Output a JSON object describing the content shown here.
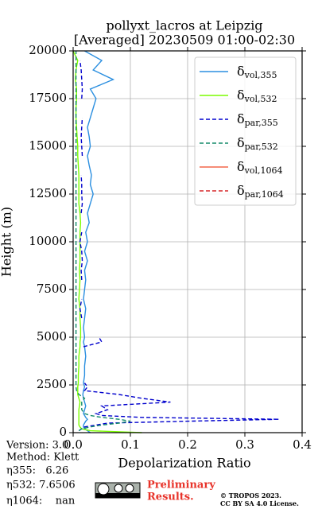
{
  "chart_data": {
    "type": "line",
    "title": [
      "pollyxt_lacros at Leipzig",
      "[Averaged] 20230509 01:00-02:30"
    ],
    "x_label": "Depolarization Ratio",
    "y_label": "Height (m)",
    "xlim": [
      0,
      0.4
    ],
    "xticks": [
      {
        "value": 0,
        "label": "0.0"
      },
      0.1,
      0.2,
      0.3,
      0.4
    ],
    "ylim": [
      0,
      20000
    ],
    "yticks": [
      0,
      2500,
      5000,
      7500,
      10000,
      12500,
      15000,
      17500,
      20000
    ],
    "grid": true,
    "legend": "upper right",
    "heights": [
      0,
      100,
      200,
      300,
      400,
      500,
      600,
      700,
      800,
      900,
      1000,
      1200,
      1400,
      1600,
      1800,
      2000,
      2200,
      2400,
      2600,
      3000,
      3500,
      4000,
      4500,
      4750,
      5000,
      5500,
      6000,
      6500,
      7000,
      7500,
      8000,
      8500,
      9000,
      9500,
      10000,
      10500,
      11000,
      11500,
      12000,
      12500,
      13000,
      13500,
      14000,
      14500,
      15000,
      15500,
      16000,
      16500,
      17000,
      17500,
      18000,
      18500,
      19000,
      19500,
      20000
    ],
    "series": [
      {
        "name": "δvol,355",
        "color": "#2b8fe0",
        "dash": false,
        "values": [
          0.03,
          0.025,
          0.02,
          0.018,
          0.018,
          0.02,
          0.022,
          0.025,
          0.022,
          0.02,
          0.018,
          0.02,
          0.022,
          0.02,
          0.018,
          0.017,
          0.018,
          0.02,
          0.018,
          0.02,
          0.02,
          0.022,
          0.02,
          0.018,
          0.02,
          0.018,
          0.02,
          0.022,
          0.018,
          0.02,
          0.022,
          0.02,
          0.025,
          0.02,
          0.025,
          0.022,
          0.028,
          0.025,
          0.03,
          0.035,
          0.03,
          0.032,
          0.028,
          0.025,
          0.03,
          0.028,
          0.025,
          0.03,
          0.035,
          0.04,
          0.03,
          0.07,
          0.035,
          0.05,
          0.02
        ]
      },
      {
        "name": "δvol,532",
        "color": "#7cfc00",
        "dash": false,
        "values": [
          0.12,
          0.03,
          0.015,
          0.012,
          0.01,
          0.01,
          0.01,
          0.01,
          0.01,
          0.01,
          0.01,
          0.01,
          0.011,
          0.012,
          0.01,
          0.008,
          0.008,
          0.008,
          0.009,
          0.009,
          0.01,
          0.01,
          0.012,
          0.012,
          0.013,
          0.013,
          0.012,
          0.012,
          0.01,
          0.011,
          0.012,
          0.011,
          0.012,
          0.012,
          0.012,
          0.012,
          0.013,
          0.012,
          0.01,
          0.01,
          0.01,
          0.01,
          0.009,
          0.008,
          0.008,
          0.007,
          0.006,
          0.005,
          0.005,
          0.006,
          0.006,
          0.004,
          0.005,
          0.008,
          0
        ]
      },
      {
        "name": "δpar,355",
        "color": "#0000cd",
        "dash": true,
        "values": [
          null,
          0.01,
          0.015,
          0.02,
          0.04,
          0.06,
          0.2,
          0.36,
          0.12,
          0.05,
          0.04,
          0.06,
          0.05,
          0.17,
          0.12,
          0.08,
          0.02,
          0.025,
          0.02,
          null,
          0.015,
          null,
          0.018,
          0.05,
          0.045,
          null,
          0.015,
          0.012,
          0.015,
          null,
          0.015,
          0.014,
          0.016,
          0.015,
          0.012,
          0.015,
          null,
          0.014,
          0.016,
          0.015,
          0.015,
          0.014,
          null,
          0.016,
          0.015,
          0.014,
          0.015,
          0.016,
          null,
          0.015,
          0.016,
          0.015,
          0.014,
          0.012,
          null
        ]
      },
      {
        "name": "δpar,532",
        "color": "#138a6a",
        "dash": true,
        "values": [
          null,
          0.01,
          0.015,
          0.03,
          0.05,
          0.08,
          0.1,
          0.08,
          0.05,
          0.03,
          0.02,
          0.015,
          0.015,
          0.015,
          0.02,
          0.01,
          0.006,
          0.005,
          0.005,
          0.005,
          0.005,
          0.005,
          0.005,
          0.005,
          0.005,
          0.005,
          0.005,
          0.005,
          0.005,
          0.005,
          0.005,
          0.005,
          0.005,
          0.005,
          0.005,
          0.005,
          0.005,
          0.005,
          0.005,
          0.005,
          0.005,
          0.005,
          0.005,
          0.005,
          0.005,
          0.005,
          0.005,
          0.005,
          0.005,
          0.005,
          0.005,
          0.005,
          0.005,
          0.005,
          0.005
        ]
      },
      {
        "name": "δvol,1064",
        "color": "#f4664a",
        "dash": false,
        "values": [
          null,
          null,
          null,
          null,
          null,
          null,
          null,
          null,
          null,
          null,
          null,
          null,
          null,
          null,
          null,
          null,
          null,
          null,
          null,
          null,
          null,
          null,
          null,
          null,
          null,
          null,
          null,
          null,
          null,
          null,
          null,
          null,
          null,
          null,
          null,
          null,
          null,
          null,
          null,
          null,
          null,
          null,
          null,
          null,
          null,
          null,
          null,
          null,
          null,
          null,
          null,
          null,
          null,
          null,
          null
        ]
      },
      {
        "name": "δpar,1064",
        "color": "#d62728",
        "dash": true,
        "values": [
          null,
          null,
          null,
          null,
          null,
          null,
          null,
          null,
          null,
          null,
          null,
          null,
          null,
          null,
          null,
          null,
          null,
          null,
          null,
          null,
          null,
          null,
          null,
          null,
          null,
          null,
          null,
          null,
          null,
          null,
          null,
          null,
          null,
          null,
          null,
          null,
          null,
          null,
          null,
          null,
          null,
          null,
          null,
          null,
          null,
          null,
          null,
          null,
          null,
          null,
          null,
          null,
          null,
          null,
          null
        ]
      }
    ]
  },
  "notes": [
    "Version: 3.0",
    "Method: Klett",
    "η355:   6.26",
    "η532: 7.6506",
    "η1064:    nan"
  ],
  "preliminary": [
    "Preliminary",
    "Results."
  ],
  "copyright": [
    "© TROPOS 2023.",
    "CC BY SA 4.0 License."
  ]
}
